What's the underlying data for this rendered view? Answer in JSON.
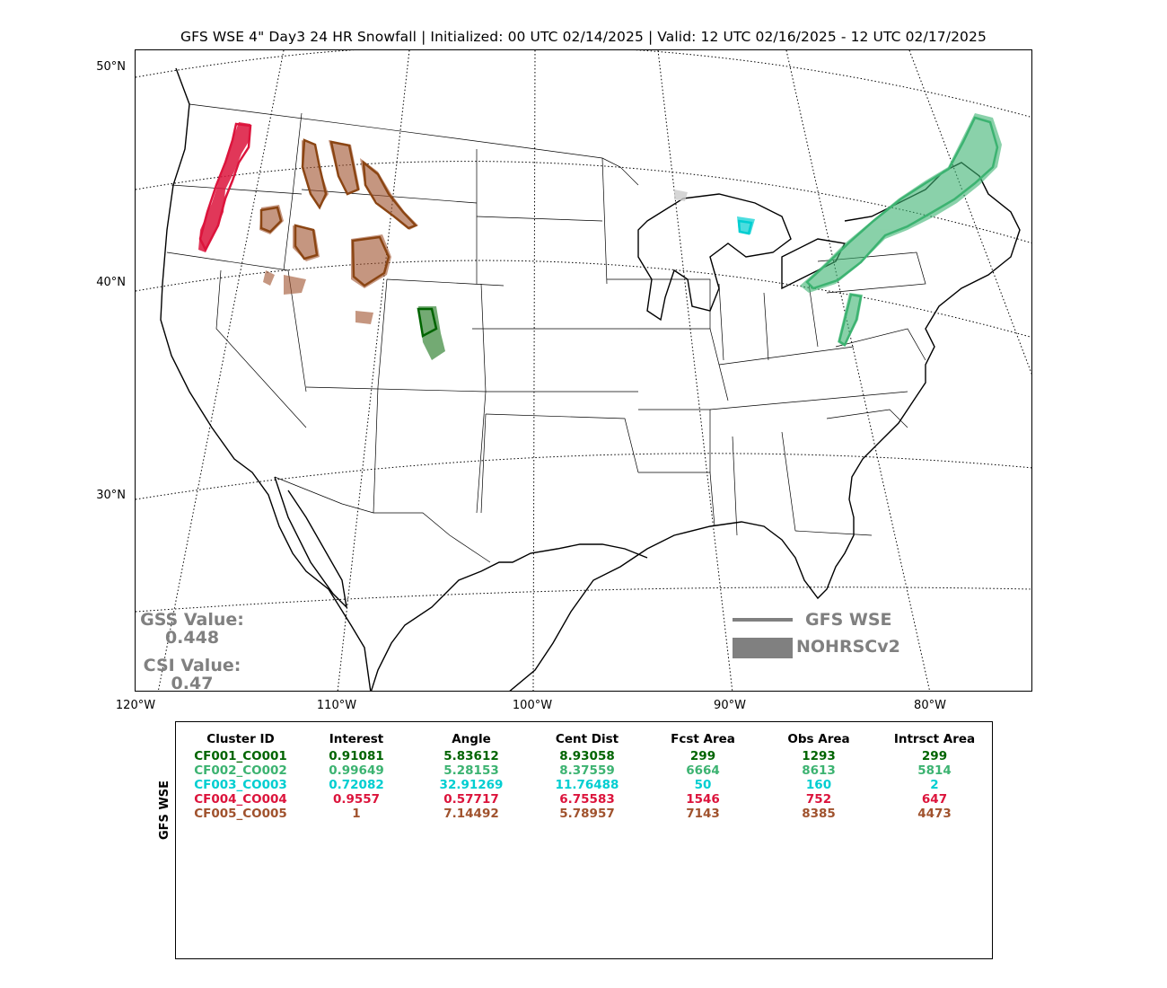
{
  "title": "GFS WSE 4\" Day3 24 HR Snowfall | Initialized: 00 UTC 02/14/2025 | Valid: 12 UTC 02/16/2025 - 12 UTC 02/17/2025",
  "axes": {
    "lat_labels": [
      "50°N",
      "40°N",
      "30°N"
    ],
    "lon_labels": [
      "120°W",
      "110°W",
      "100°W",
      "90°W",
      "80°W"
    ]
  },
  "scores": {
    "gss_label": "GSS Value:",
    "gss_value": "0.448",
    "csi_label": "CSI Value:",
    "csi_value": "0.47"
  },
  "legend": {
    "line_label": "GFS WSE",
    "fill_label": "NOHRSCv2",
    "color": "#808080"
  },
  "table": {
    "ylabel": "GFS WSE",
    "headers": [
      "Cluster ID",
      "Interest",
      "Angle",
      "Cent Dist",
      "Fcst Area",
      "Obs Area",
      "Intrsct Area"
    ],
    "rows": [
      {
        "color": "#006400",
        "cells": [
          "CF001_CO001",
          "0.91081",
          "5.83612",
          "8.93058",
          "299",
          "1293",
          "299"
        ]
      },
      {
        "color": "#3cb371",
        "cells": [
          "CF002_CO002",
          "0.99649",
          "5.28153",
          "8.37559",
          "6664",
          "8613",
          "5814"
        ]
      },
      {
        "color": "#00ced1",
        "cells": [
          "CF003_CO003",
          "0.72082",
          "32.91269",
          "11.76488",
          "50",
          "160",
          "2"
        ]
      },
      {
        "color": "#dc143c",
        "cells": [
          "CF004_CO004",
          "0.9557",
          "0.57717",
          "6.75583",
          "1546",
          "752",
          "647"
        ]
      },
      {
        "color": "#a0522d",
        "cells": [
          "CF005_CO005",
          "1",
          "7.14492",
          "5.78957",
          "7143",
          "8385",
          "4473"
        ]
      }
    ]
  },
  "clusters": [
    {
      "id": "CF001_CO001",
      "color": "#006400",
      "region": "central-colorado"
    },
    {
      "id": "CF002_CO002",
      "color": "#3cb371",
      "region": "northeast-ohio-valley"
    },
    {
      "id": "CF003_CO003",
      "color": "#00ced1",
      "region": "western-michigan"
    },
    {
      "id": "CF004_CO004",
      "color": "#dc143c",
      "region": "cascades"
    },
    {
      "id": "CF005_CO005",
      "color": "#a0522d",
      "region": "northern-rockies"
    }
  ]
}
